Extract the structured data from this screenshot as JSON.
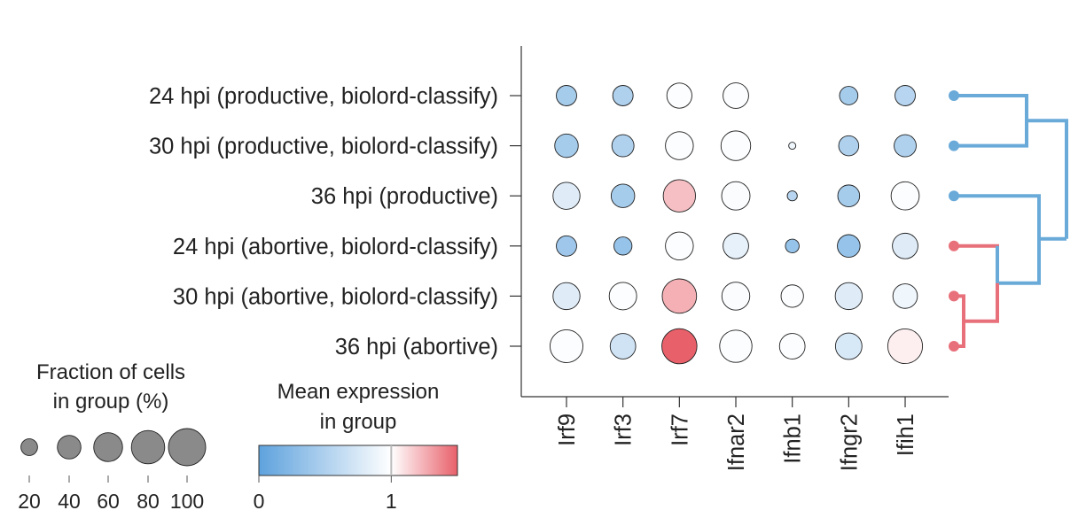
{
  "chart_data": {
    "type": "dotplot",
    "rows": [
      "24 hpi (productive, biolord-classify)",
      "30 hpi (productive, biolord-classify)",
      "36 hpi (productive)",
      "24 hpi (abortive, biolord-classify)",
      "30 hpi (abortive, biolord-classify)",
      "36 hpi (abortive)"
    ],
    "genes": [
      "Irf9",
      "Irf3",
      "Irf7",
      "Ifnar2",
      "Ifnb1",
      "Ifngr2",
      "Ifih1"
    ],
    "fraction_pct": [
      [
        33,
        33,
        50,
        52,
        0,
        27,
        33
      ],
      [
        44,
        39,
        62,
        70,
        4,
        32,
        39
      ],
      [
        58,
        44,
        83,
        64,
        8,
        38,
        63
      ],
      [
        33,
        26,
        62,
        52,
        15,
        41,
        52
      ],
      [
        58,
        60,
        94,
        62,
        40,
        58,
        48
      ],
      [
        86,
        52,
        98,
        83,
        52,
        56,
        96
      ]
    ],
    "mean_expression": [
      [
        0.45,
        0.5,
        0.98,
        0.98,
        null,
        0.45,
        0.55
      ],
      [
        0.45,
        0.5,
        0.98,
        0.98,
        0.9,
        0.5,
        0.5
      ],
      [
        0.8,
        0.45,
        1.2,
        0.97,
        0.55,
        0.45,
        0.98
      ],
      [
        0.4,
        0.35,
        0.98,
        0.85,
        0.35,
        0.35,
        0.8
      ],
      [
        0.8,
        0.98,
        1.25,
        0.97,
        0.98,
        0.8,
        0.9
      ],
      [
        0.98,
        0.7,
        1.5,
        0.98,
        0.98,
        0.75,
        1.05
      ]
    ],
    "row_groups": [
      "productive",
      "productive",
      "productive",
      "abortive",
      "abortive",
      "abortive"
    ],
    "size_legend": {
      "title_line1": "Fraction of cells",
      "title_line2": "in group (%)",
      "values": [
        20,
        40,
        60,
        80,
        100
      ],
      "labels": [
        "20",
        "40",
        "60",
        "80",
        "100"
      ]
    },
    "color_legend": {
      "title_line1": "Mean expression",
      "title_line2": "in group",
      "min": 0,
      "max": 1.5,
      "mid": 1,
      "tick_labels": [
        "0",
        "1"
      ]
    },
    "colors": {
      "low": "#5ea2dd",
      "mid": "#ffffff",
      "high": "#e8606a",
      "dot_fill_gray": "#8a8a8a",
      "productive_branch": "#6aaad9",
      "abortive_branch": "#e8707a"
    }
  }
}
